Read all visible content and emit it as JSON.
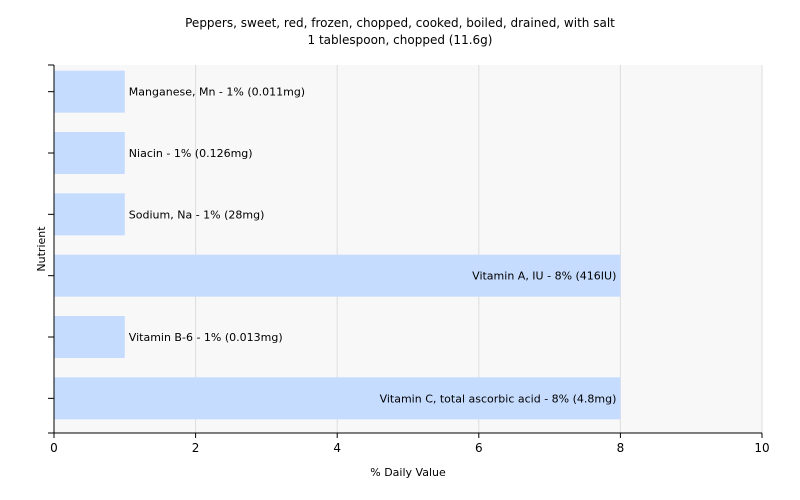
{
  "chart_data": {
    "type": "bar",
    "orientation": "horizontal",
    "title": "Peppers, sweet, red, frozen, chopped, cooked, boiled, drained, with salt",
    "subtitle": "1 tablespoon, chopped (11.6g)",
    "xlabel": "% Daily Value",
    "ylabel": "Nutrient",
    "xlim": [
      0,
      10
    ],
    "xticks": [
      0,
      2,
      4,
      6,
      8,
      10
    ],
    "grid": "vertical",
    "bar_color": "#c6dcff",
    "categories": [
      "Manganese, Mn",
      "Niacin",
      "Sodium, Na",
      "Vitamin A, IU",
      "Vitamin B-6",
      "Vitamin C, total ascorbic acid"
    ],
    "values": [
      1,
      1,
      1,
      8,
      1,
      8
    ],
    "labels": [
      "Manganese, Mn - 1% (0.011mg)",
      "Niacin - 1% (0.126mg)",
      "Sodium, Na - 1% (28mg)",
      "Vitamin A, IU - 8% (416IU)",
      "Vitamin B-6 - 1% (0.013mg)",
      "Vitamin C, total ascorbic acid - 8% (4.8mg)"
    ]
  }
}
